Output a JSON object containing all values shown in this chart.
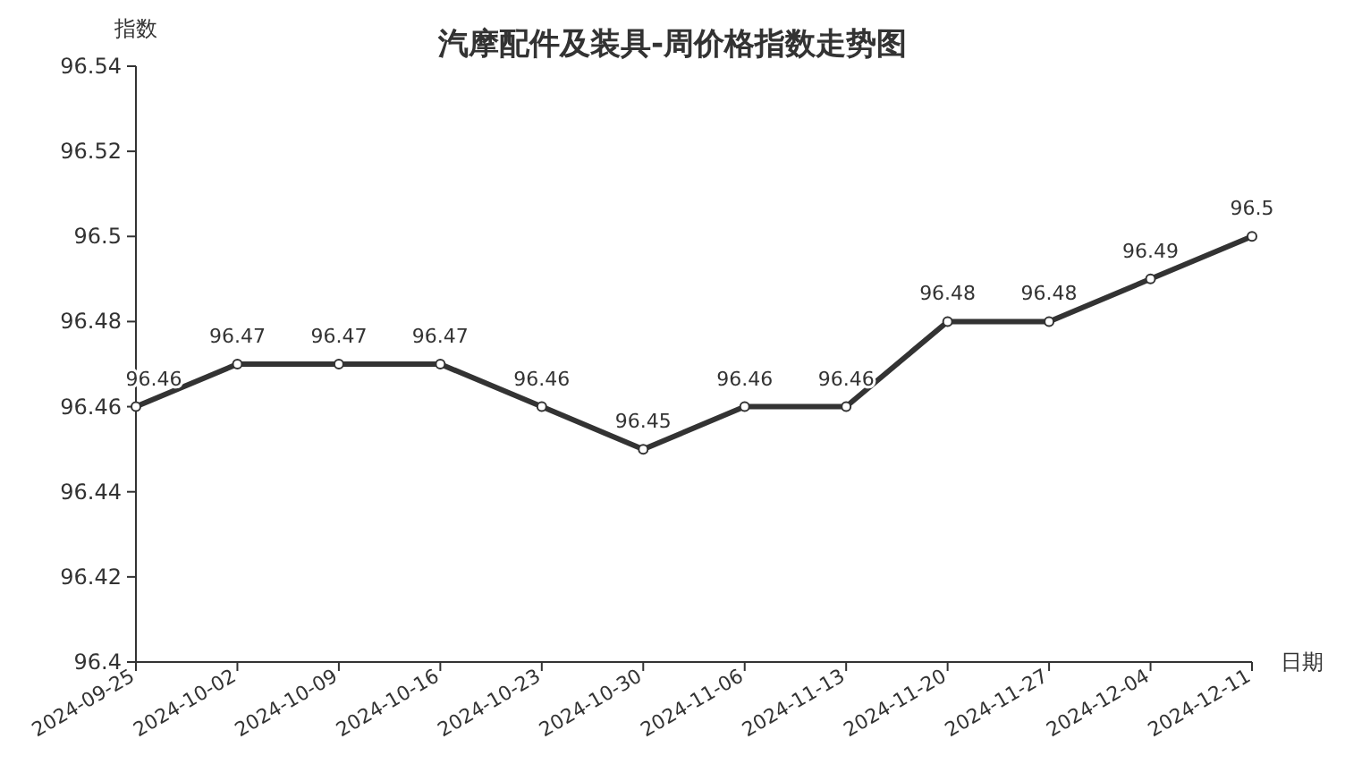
{
  "chart_data": {
    "type": "line",
    "title": "汽摩配件及装具-周价格指数走势图",
    "ylabel": "指数",
    "xlabel": "日期",
    "categories": [
      "2024-09-25",
      "2024-10-02",
      "2024-10-09",
      "2024-10-16",
      "2024-10-23",
      "2024-10-30",
      "2024-11-06",
      "2024-11-13",
      "2024-11-20",
      "2024-11-27",
      "2024-12-04",
      "2024-12-11"
    ],
    "values": [
      96.46,
      96.47,
      96.47,
      96.47,
      96.46,
      96.45,
      96.46,
      96.46,
      96.48,
      96.48,
      96.49,
      96.5
    ],
    "color": "#333333",
    "ylim": [
      96.4,
      96.54
    ],
    "yticks": [
      96.4,
      96.42,
      96.44,
      96.46,
      96.48,
      96.5,
      96.52,
      96.54
    ],
    "data_labels": true,
    "marker": "circle",
    "line_style": "solid"
  }
}
